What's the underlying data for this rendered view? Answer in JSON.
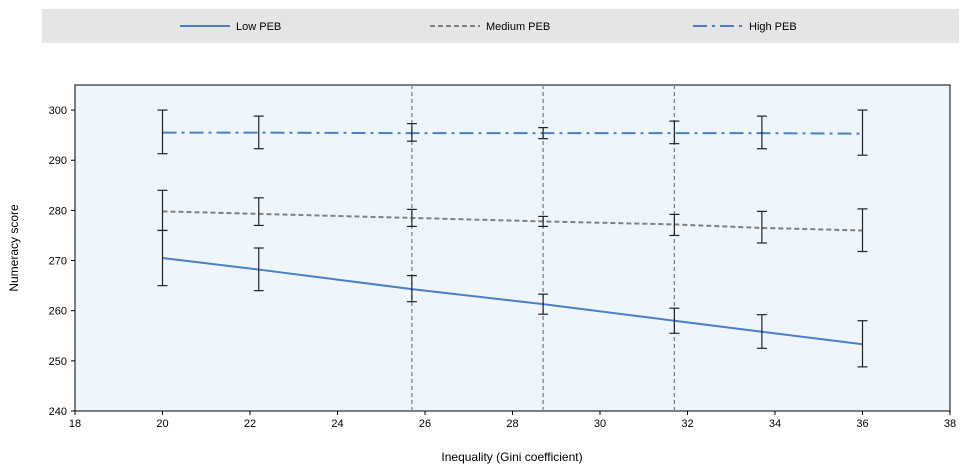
{
  "chart_data": {
    "type": "line",
    "title": "",
    "xlabel": "Inequality (Gini coefficient)",
    "ylabel": "Numeracy score",
    "xlim": [
      18,
      38
    ],
    "ylim": [
      240,
      305
    ],
    "x_ticks": [
      18,
      20,
      22,
      24,
      26,
      28,
      30,
      32,
      34,
      36,
      38
    ],
    "y_ticks": [
      240,
      250,
      260,
      270,
      280,
      290,
      300
    ],
    "grid": false,
    "vertical_reference_lines": [
      25.7,
      28.7,
      31.7
    ],
    "legend_position": "top",
    "x": [
      20,
      22.2,
      25.7,
      28.7,
      31.7,
      33.7,
      36
    ],
    "series": [
      {
        "name": "Low PEB",
        "style": "solid",
        "color": "#4a7fc8",
        "values": [
          270.5,
          268.2,
          264.3,
          261.3,
          258.0,
          255.8,
          253.3
        ],
        "error_low": [
          265.0,
          264.0,
          261.8,
          259.3,
          255.5,
          252.5,
          248.8
        ],
        "error_high": [
          276.0,
          272.5,
          267.0,
          263.3,
          260.5,
          259.2,
          258.0
        ]
      },
      {
        "name": "Medium PEB",
        "style": "dashed",
        "color": "#808080",
        "values": [
          279.8,
          279.3,
          278.5,
          277.8,
          277.2,
          276.5,
          276.0
        ],
        "error_low": [
          276.0,
          277.0,
          276.8,
          276.8,
          275.0,
          273.5,
          271.8
        ],
        "error_high": [
          284.0,
          282.5,
          280.2,
          278.8,
          279.2,
          279.8,
          280.3
        ]
      },
      {
        "name": "High PEB",
        "style": "dash-dot",
        "color": "#4a7fc8",
        "values": [
          295.5,
          295.5,
          295.4,
          295.4,
          295.4,
          295.4,
          295.3
        ],
        "error_low": [
          291.3,
          292.3,
          293.8,
          294.3,
          293.3,
          292.3,
          291.0
        ],
        "error_high": [
          300.0,
          298.8,
          297.3,
          296.5,
          297.8,
          298.8,
          300.0
        ]
      }
    ]
  }
}
